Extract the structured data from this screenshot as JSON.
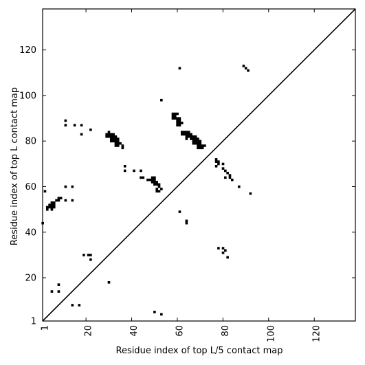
{
  "chart_data": {
    "type": "heatmap",
    "title": "",
    "xlabel": "Residue index of top L/5 contact map",
    "ylabel": "Residue index of top L contact map",
    "xlim": [
      1,
      138
    ],
    "ylim": [
      1,
      138
    ],
    "x_ticks": [
      1,
      20,
      40,
      60,
      80,
      100,
      120
    ],
    "y_ticks": [
      1,
      20,
      40,
      60,
      80,
      100,
      120
    ],
    "grid": false,
    "legend": "none",
    "diagonal": true,
    "cell_color": "#000000",
    "background_color": "#ffffff",
    "contacts": [
      [
        30,
        84
      ],
      [
        29,
        83
      ],
      [
        30,
        83
      ],
      [
        31,
        83
      ],
      [
        32,
        83
      ],
      [
        29,
        82
      ],
      [
        30,
        82
      ],
      [
        31,
        82
      ],
      [
        32,
        82
      ],
      [
        33,
        82
      ],
      [
        31,
        81
      ],
      [
        32,
        81
      ],
      [
        33,
        81
      ],
      [
        34,
        81
      ],
      [
        31,
        80
      ],
      [
        32,
        80
      ],
      [
        33,
        80
      ],
      [
        34,
        80
      ],
      [
        33,
        79
      ],
      [
        34,
        79
      ],
      [
        35,
        79
      ],
      [
        33,
        78
      ],
      [
        34,
        78
      ],
      [
        36,
        78
      ],
      [
        36,
        77
      ],
      [
        37,
        69
      ],
      [
        37,
        67
      ],
      [
        41,
        67
      ],
      [
        44,
        67
      ],
      [
        44,
        64
      ],
      [
        45,
        64
      ],
      [
        49,
        64
      ],
      [
        50,
        64
      ],
      [
        47,
        63
      ],
      [
        48,
        63
      ],
      [
        49,
        63
      ],
      [
        50,
        63
      ],
      [
        49,
        62
      ],
      [
        50,
        62
      ],
      [
        51,
        62
      ],
      [
        50,
        61
      ],
      [
        51,
        61
      ],
      [
        52,
        61
      ],
      [
        52,
        60
      ],
      [
        53,
        59
      ],
      [
        51,
        59
      ],
      [
        51,
        58
      ],
      [
        52,
        58
      ],
      [
        58,
        92
      ],
      [
        59,
        92
      ],
      [
        60,
        92
      ],
      [
        58,
        91
      ],
      [
        59,
        91
      ],
      [
        58,
        90
      ],
      [
        59,
        90
      ],
      [
        60,
        90
      ],
      [
        61,
        90
      ],
      [
        60,
        89
      ],
      [
        61,
        89
      ],
      [
        60,
        88
      ],
      [
        61,
        88
      ],
      [
        62,
        88
      ],
      [
        60,
        87
      ],
      [
        61,
        87
      ],
      [
        62,
        84
      ],
      [
        63,
        84
      ],
      [
        64,
        84
      ],
      [
        65,
        84
      ],
      [
        62,
        83
      ],
      [
        63,
        83
      ],
      [
        64,
        83
      ],
      [
        65,
        83
      ],
      [
        66,
        83
      ],
      [
        64,
        82
      ],
      [
        65,
        82
      ],
      [
        66,
        82
      ],
      [
        67,
        82
      ],
      [
        68,
        82
      ],
      [
        64,
        81
      ],
      [
        66,
        81
      ],
      [
        67,
        81
      ],
      [
        68,
        81
      ],
      [
        69,
        81
      ],
      [
        67,
        80
      ],
      [
        68,
        80
      ],
      [
        69,
        80
      ],
      [
        70,
        80
      ],
      [
        67,
        79
      ],
      [
        68,
        79
      ],
      [
        69,
        79
      ],
      [
        70,
        79
      ],
      [
        69,
        78
      ],
      [
        70,
        78
      ],
      [
        71,
        78
      ],
      [
        72,
        78
      ],
      [
        69,
        77
      ],
      [
        70,
        77
      ],
      [
        71,
        77
      ],
      [
        11,
        89
      ],
      [
        11,
        87
      ],
      [
        15,
        87
      ],
      [
        18,
        87
      ],
      [
        22,
        85
      ],
      [
        18,
        83
      ],
      [
        2,
        58
      ],
      [
        11,
        60
      ],
      [
        14,
        60
      ],
      [
        11,
        54
      ],
      [
        14,
        54
      ],
      [
        3,
        51
      ],
      [
        3,
        50
      ],
      [
        4,
        52
      ],
      [
        4,
        51
      ],
      [
        5,
        53
      ],
      [
        5,
        52
      ],
      [
        5,
        51
      ],
      [
        5,
        50
      ],
      [
        6,
        53
      ],
      [
        6,
        52
      ],
      [
        6,
        51
      ],
      [
        7,
        54
      ],
      [
        8,
        54
      ],
      [
        8,
        55
      ],
      [
        9,
        55
      ],
      [
        1,
        44
      ],
      [
        53,
        98
      ],
      [
        61,
        112
      ],
      [
        61,
        49
      ],
      [
        64,
        45
      ],
      [
        64,
        44
      ],
      [
        77,
        72
      ],
      [
        77,
        71
      ],
      [
        78,
        71
      ],
      [
        78,
        70
      ],
      [
        77,
        69
      ],
      [
        80,
        70
      ],
      [
        80,
        68
      ],
      [
        81,
        67
      ],
      [
        81,
        64
      ],
      [
        82,
        66
      ],
      [
        83,
        65
      ],
      [
        83,
        64
      ],
      [
        84,
        63
      ],
      [
        87,
        60
      ],
      [
        92,
        57
      ],
      [
        89,
        113
      ],
      [
        90,
        112
      ],
      [
        91,
        111
      ],
      [
        78,
        33
      ],
      [
        80,
        33
      ],
      [
        80,
        31
      ],
      [
        81,
        32
      ],
      [
        82,
        29
      ],
      [
        19,
        30
      ],
      [
        21,
        30
      ],
      [
        22,
        30
      ],
      [
        22,
        28
      ],
      [
        30,
        18
      ],
      [
        8,
        17
      ],
      [
        5,
        14
      ],
      [
        8,
        14
      ],
      [
        14,
        8
      ],
      [
        17,
        8
      ],
      [
        50,
        5
      ],
      [
        53,
        4
      ]
    ]
  }
}
